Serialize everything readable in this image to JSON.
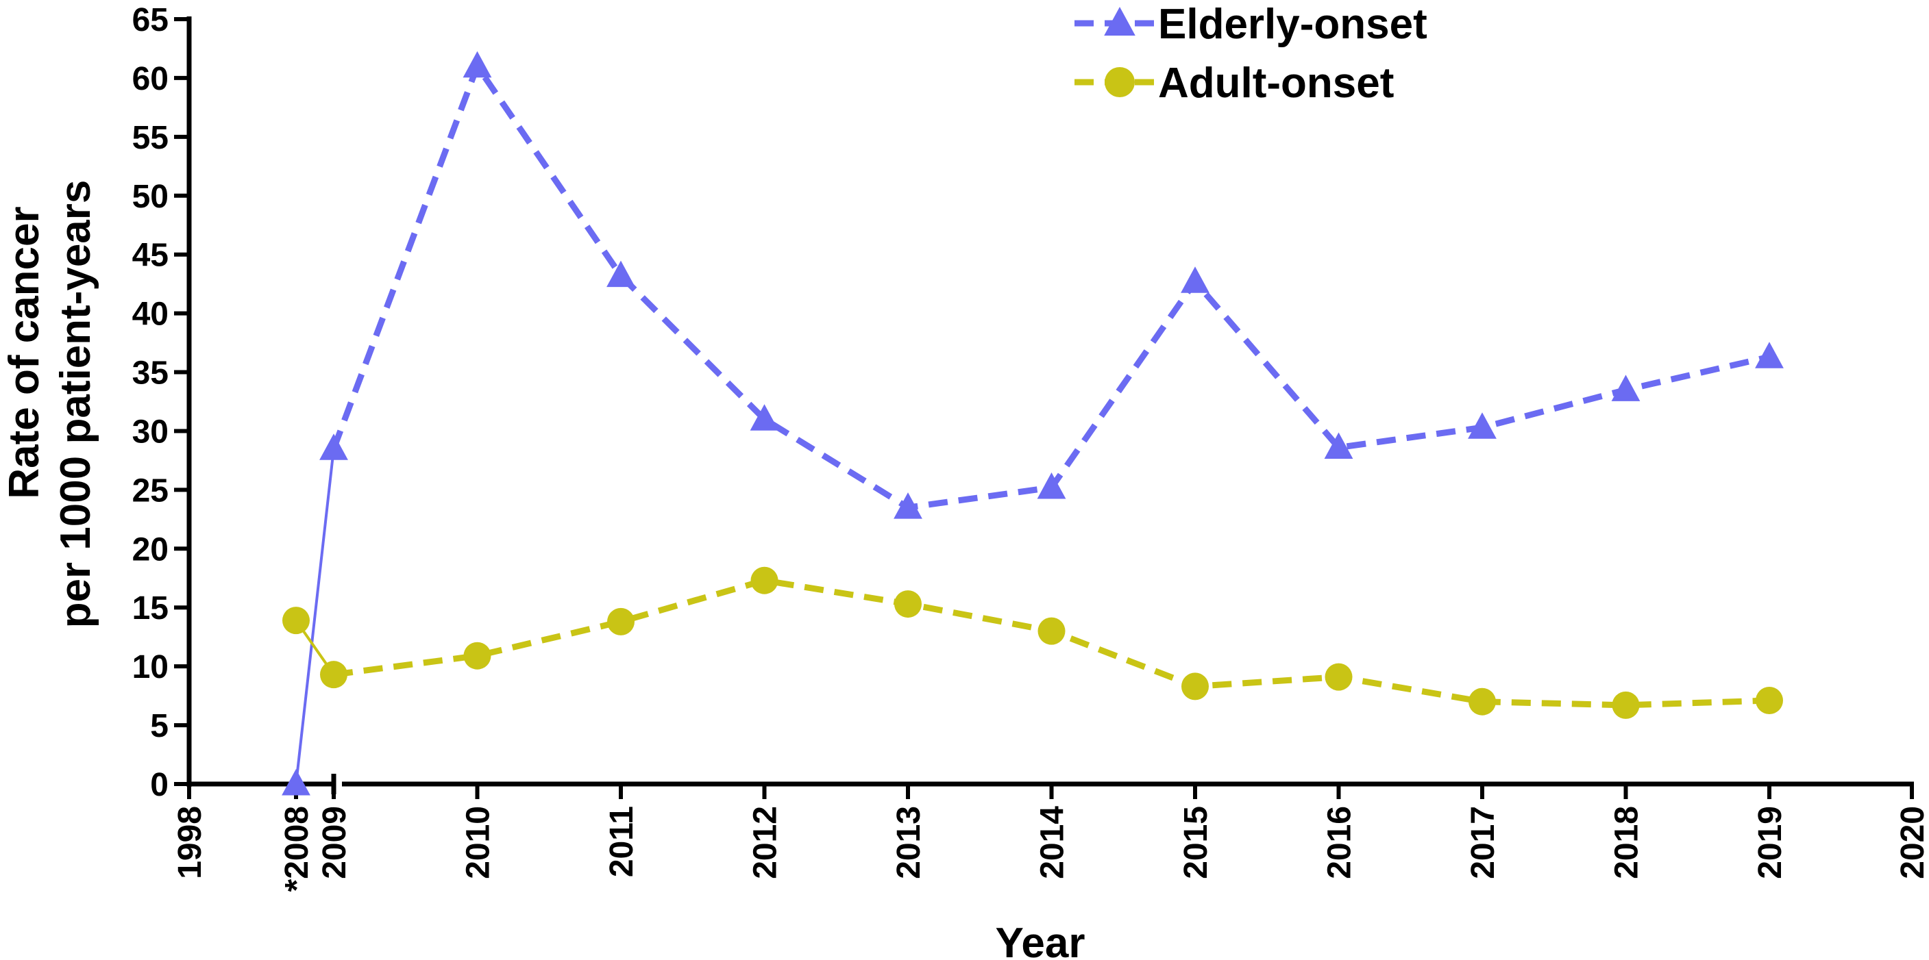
{
  "chart_data": {
    "type": "line",
    "title": "",
    "xlabel": "Year",
    "ylabel_line1": "Rate of cancer",
    "ylabel_line2": "per 1000 patient-years",
    "xlim": [
      1998,
      2020
    ],
    "ylim": [
      0,
      65
    ],
    "yticks": [
      0,
      5,
      10,
      15,
      20,
      25,
      30,
      35,
      40,
      45,
      50,
      55,
      60,
      65
    ],
    "xticks": [
      {
        "value": 1998,
        "label": "1998"
      },
      {
        "value": 2008,
        "label": "*2008"
      },
      {
        "value": 2009,
        "label": "2009"
      },
      {
        "value": 2010,
        "label": "2010"
      },
      {
        "value": 2011,
        "label": "2011"
      },
      {
        "value": 2012,
        "label": "2012"
      },
      {
        "value": 2013,
        "label": "2013"
      },
      {
        "value": 2014,
        "label": "2014"
      },
      {
        "value": 2015,
        "label": "2015"
      },
      {
        "value": 2016,
        "label": "2016"
      },
      {
        "value": 2017,
        "label": "2017"
      },
      {
        "value": 2018,
        "label": "2018"
      },
      {
        "value": 2019,
        "label": "2019"
      },
      {
        "value": 2020,
        "label": "2020"
      }
    ],
    "axis_break": {
      "from": 1998,
      "to": 2008
    },
    "grid": false,
    "legend_position": "top-center",
    "series": [
      {
        "name": "Elderly-onset",
        "color": "#6b6bf2",
        "marker": "triangle",
        "dash": true,
        "x": [
          2008,
          2009,
          2010,
          2011,
          2012,
          2013,
          2014,
          2015,
          2016,
          2017,
          2018,
          2019
        ],
        "values": [
          0,
          28.5,
          61,
          43.2,
          31,
          23.5,
          25.2,
          42.7,
          28.6,
          30.3,
          33.5,
          36.3
        ]
      },
      {
        "name": "Adult-onset",
        "color": "#c9c415",
        "marker": "circle",
        "dash": true,
        "x": [
          2008,
          2009,
          2010,
          2011,
          2012,
          2013,
          2014,
          2015,
          2016,
          2017,
          2018,
          2019
        ],
        "values": [
          13.9,
          9.3,
          10.9,
          13.8,
          17.3,
          15.3,
          13,
          8.3,
          9.1,
          7,
          6.7,
          7.1
        ]
      }
    ]
  }
}
